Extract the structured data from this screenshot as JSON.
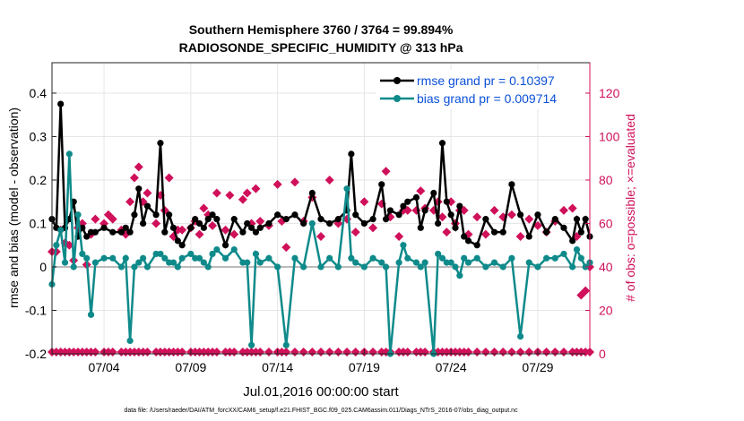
{
  "chart_data": {
    "type": "line",
    "title": "Southern Hemisphere 3760 / 3764 = 99.894%",
    "subtitle": "RADIOSONDE_SPECIFIC_HUMIDITY @ 313 hPa",
    "xlabel": "Jul.01,2016 00:00:00 start",
    "ylabel_left": "rmse and bias (model - observation)",
    "ylabel_right": "# of obs: o=possible; ×=evaluated",
    "footnote": "data file: /Users/raeder/DAI/ATM_forcXX/CAM6_setup/f.e21.FHIST_BGC.f09_025.CAM6assim.011/Diags_NTrS_2016-07/obs_diag_output.nc",
    "x_range": [
      1.0,
      32.0
    ],
    "ylim_left": [
      -0.2,
      0.47
    ],
    "ylim_right": [
      0,
      134
    ],
    "x_ticks": [
      {
        "value": 4,
        "label": "07/04"
      },
      {
        "value": 9,
        "label": "07/09"
      },
      {
        "value": 14,
        "label": "07/14"
      },
      {
        "value": 19,
        "label": "07/19"
      },
      {
        "value": 24,
        "label": "07/24"
      },
      {
        "value": 29,
        "label": "07/29"
      }
    ],
    "y_ticks_left": [
      {
        "value": 0.4,
        "label": "0.4"
      },
      {
        "value": 0.3,
        "label": "0.3"
      },
      {
        "value": 0.2,
        "label": "0.2"
      },
      {
        "value": 0.1,
        "label": "0.1"
      },
      {
        "value": 0.0,
        "label": "0"
      },
      {
        "value": -0.1,
        "label": "-0.1"
      },
      {
        "value": -0.2,
        "label": "-0.2"
      }
    ],
    "y_ticks_right": [
      {
        "value": 120,
        "label": "120"
      },
      {
        "value": 100,
        "label": "100"
      },
      {
        "value": 80,
        "label": "80"
      },
      {
        "value": 60,
        "label": "60"
      },
      {
        "value": 40,
        "label": "40"
      },
      {
        "value": 20,
        "label": "20"
      },
      {
        "value": 0,
        "label": "0"
      }
    ],
    "series": [
      {
        "name": "rmse",
        "legend": "rmse grand pr = 0.10397",
        "color": "#000000",
        "axis": "left",
        "marker": "circle",
        "x": [
          1.0,
          1.25,
          1.5,
          1.75,
          2.0,
          2.25,
          2.5,
          2.75,
          3.0,
          3.25,
          3.5,
          4.0,
          4.5,
          5.0,
          5.25,
          5.5,
          5.75,
          6.0,
          6.25,
          6.5,
          7.0,
          7.25,
          7.5,
          7.75,
          8.0,
          8.25,
          8.5,
          9.0,
          9.25,
          9.5,
          9.75,
          10.0,
          10.25,
          10.5,
          11.0,
          11.5,
          12.0,
          12.25,
          12.5,
          12.75,
          13.0,
          13.5,
          14.0,
          14.5,
          15.0,
          15.5,
          16.0,
          16.5,
          17.0,
          17.5,
          18.0,
          18.25,
          18.5,
          19.0,
          19.5,
          20.0,
          20.25,
          20.5,
          21.0,
          21.25,
          21.5,
          22.0,
          22.25,
          22.5,
          23.0,
          23.25,
          23.5,
          23.75,
          24.0,
          24.25,
          24.5,
          24.75,
          25.0,
          25.5,
          26.0,
          26.5,
          27.0,
          27.5,
          28.0,
          28.5,
          29.0,
          29.5,
          30.0,
          30.5,
          31.0,
          31.25,
          31.5,
          31.75,
          32.0
        ],
        "values": [
          0.11,
          0.09,
          0.375,
          0.09,
          0.11,
          0.15,
          0.07,
          0.09,
          0.07,
          0.08,
          0.08,
          0.09,
          0.08,
          0.08,
          0.09,
          0.08,
          0.12,
          0.18,
          0.1,
          0.14,
          0.12,
          0.285,
          0.08,
          0.12,
          0.09,
          0.06,
          0.05,
          0.09,
          0.11,
          0.1,
          0.09,
          0.11,
          0.12,
          0.11,
          0.05,
          0.11,
          0.08,
          0.1,
          0.09,
          0.08,
          0.09,
          0.1,
          0.12,
          0.11,
          0.12,
          0.1,
          0.17,
          0.11,
          0.1,
          0.11,
          0.13,
          0.26,
          0.12,
          0.1,
          0.11,
          0.19,
          0.11,
          0.13,
          0.12,
          0.14,
          0.15,
          0.16,
          0.09,
          0.13,
          0.17,
          0.1,
          0.285,
          0.15,
          0.12,
          0.09,
          0.14,
          0.07,
          0.06,
          0.05,
          0.11,
          0.08,
          0.08,
          0.19,
          0.12,
          0.07,
          0.12,
          0.08,
          0.11,
          0.09,
          0.06,
          0.11,
          0.08,
          0.11,
          0.07
        ]
      },
      {
        "name": "bias",
        "legend": "bias grand pr = 0.009714",
        "color": "#0f8a8a",
        "axis": "left",
        "marker": "circle",
        "x": [
          1.0,
          1.25,
          1.5,
          1.75,
          2.0,
          2.25,
          2.5,
          2.75,
          3.0,
          3.25,
          3.5,
          4.0,
          4.5,
          5.0,
          5.25,
          5.5,
          5.75,
          6.0,
          6.25,
          6.5,
          7.0,
          7.25,
          7.5,
          7.75,
          8.0,
          8.25,
          8.5,
          9.0,
          9.25,
          9.5,
          9.75,
          10.0,
          10.25,
          10.5,
          11.0,
          11.5,
          12.0,
          12.25,
          12.5,
          12.75,
          13.0,
          13.5,
          14.0,
          14.5,
          15.0,
          15.5,
          16.0,
          16.5,
          17.0,
          17.5,
          18.0,
          18.25,
          18.5,
          19.0,
          19.5,
          20.0,
          20.25,
          20.5,
          21.0,
          21.25,
          21.5,
          22.0,
          22.25,
          22.5,
          23.0,
          23.25,
          23.5,
          23.75,
          24.0,
          24.25,
          24.5,
          24.75,
          25.0,
          25.5,
          26.0,
          26.5,
          27.0,
          27.5,
          28.0,
          28.5,
          29.0,
          29.5,
          30.0,
          30.5,
          31.0,
          31.25,
          31.5,
          31.75,
          32.0
        ],
        "values": [
          -0.04,
          0.05,
          0.085,
          0.01,
          0.26,
          0.0,
          0.12,
          0.03,
          0.02,
          -0.11,
          0.01,
          0.02,
          0.02,
          0.0,
          0.02,
          -0.17,
          0.0,
          0.01,
          0.02,
          0.0,
          0.03,
          0.03,
          0.02,
          0.01,
          0.01,
          0.0,
          0.02,
          0.03,
          0.02,
          0.02,
          0.01,
          0.0,
          0.03,
          0.04,
          0.02,
          0.04,
          0.01,
          0.01,
          -0.18,
          0.03,
          0.01,
          0.02,
          0.0,
          -0.18,
          0.02,
          0.0,
          0.1,
          0.0,
          0.02,
          0.0,
          0.18,
          0.02,
          0.01,
          0.0,
          0.02,
          0.01,
          0.0,
          -0.2,
          0.01,
          0.05,
          0.02,
          0.01,
          0.0,
          0.01,
          -0.2,
          0.03,
          0.02,
          0.01,
          0.01,
          0.0,
          -0.02,
          0.02,
          0.01,
          0.02,
          0.0,
          0.01,
          0.0,
          0.02,
          -0.16,
          0.01,
          0.0,
          0.02,
          0.02,
          0.03,
          0.0,
          0.04,
          0.02,
          0.0,
          0.01
        ]
      }
    ],
    "obs_counts": {
      "name": "# of obs evaluated",
      "color": "#d0105a",
      "axis": "right",
      "marker": "diamond",
      "x": [
        1.0,
        1.25,
        1.5,
        1.75,
        2.0,
        2.25,
        2.5,
        2.75,
        3.0,
        3.25,
        3.5,
        4.0,
        4.25,
        4.5,
        5.0,
        5.25,
        5.5,
        5.75,
        6.0,
        6.25,
        6.5,
        7.0,
        7.25,
        7.5,
        7.75,
        8.0,
        8.25,
        8.5,
        9.0,
        9.25,
        9.5,
        9.75,
        10.0,
        10.25,
        10.5,
        11.0,
        11.25,
        11.5,
        12.0,
        12.25,
        12.5,
        12.75,
        13.0,
        13.5,
        14.0,
        14.25,
        14.5,
        15.0,
        15.5,
        16.0,
        16.5,
        17.0,
        17.5,
        18.0,
        18.5,
        19.0,
        19.5,
        20.0,
        20.25,
        20.5,
        21.0,
        21.25,
        21.5,
        22.0,
        22.25,
        22.5,
        23.0,
        23.25,
        23.5,
        23.75,
        24.0,
        24.25,
        24.5,
        24.75,
        25.0,
        25.5,
        26.0,
        26.5,
        27.0,
        27.5,
        28.0,
        28.5,
        29.0,
        29.5,
        30.0,
        30.5,
        31.0,
        31.25,
        31.5,
        31.75,
        32.0
      ],
      "values": [
        47,
        47,
        57,
        51,
        50,
        43,
        58,
        60,
        41,
        55,
        62,
        60,
        64,
        62,
        57,
        55,
        70,
        81,
        86,
        70,
        74,
        60,
        73,
        66,
        81,
        54,
        57,
        57,
        58,
        61,
        55,
        67,
        64,
        59,
        74,
        57,
        73,
        55,
        71,
        74,
        60,
        76,
        61,
        59,
        78,
        61,
        49,
        79,
        61,
        72,
        54,
        80,
        60,
        62,
        56,
        70,
        58,
        69,
        84,
        63,
        54,
        66,
        66,
        66,
        75,
        67,
        66,
        70,
        63,
        56,
        70,
        60,
        66,
        66,
        55,
        63,
        55,
        66,
        63,
        64,
        54,
        62,
        59,
        56,
        61,
        66,
        67,
        54,
        27,
        29,
        40
      ]
    }
  }
}
